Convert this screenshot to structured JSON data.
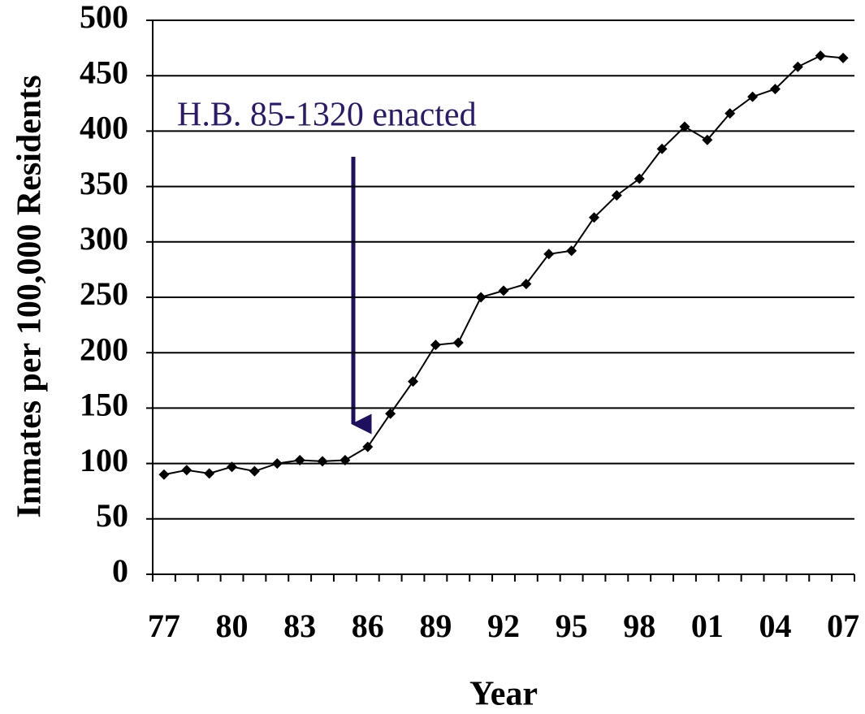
{
  "chart_data": {
    "type": "line",
    "annotation": "H.B. 85-1320 enacted",
    "x_label": "Year",
    "y_label": "Inmates per 100,000 Residents",
    "categories": [
      "77",
      null,
      null,
      "80",
      null,
      null,
      "83",
      null,
      null,
      "86",
      null,
      null,
      "89",
      null,
      null,
      "92",
      null,
      null,
      "95",
      null,
      null,
      "98",
      null,
      null,
      "01",
      null,
      null,
      "04",
      null,
      null,
      "07"
    ],
    "series": [
      {
        "name": null,
        "color": "#000000",
        "values": [
          90,
          94,
          91,
          97,
          93,
          100,
          103,
          102,
          103,
          115,
          145,
          174,
          207,
          209,
          250,
          256,
          262,
          289,
          292,
          322,
          342,
          357,
          384,
          404,
          392,
          416,
          431,
          438,
          458,
          468,
          466
        ]
      }
    ],
    "ylim": [
      0,
      500
    ],
    "yticks": [
      0,
      50,
      100,
      150,
      200,
      250,
      300,
      350,
      400,
      450,
      500
    ],
    "grid": true
  }
}
